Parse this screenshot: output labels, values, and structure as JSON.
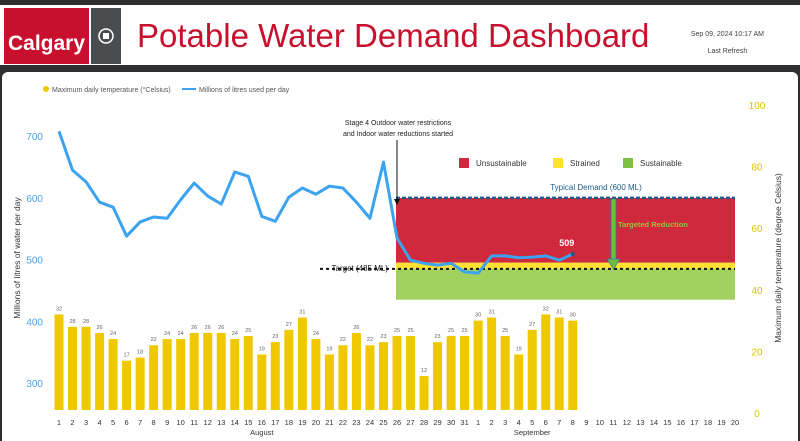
{
  "header": {
    "logo_text": "Calgary",
    "title": "Potable Water Demand Dashboard",
    "timestamp": "Sep 09, 2024 10:17 AM",
    "refresh_label": "Last Refresh"
  },
  "chart_data": {
    "type": "bar+line",
    "legend": [
      "Maximum daily temperature (°Celsius)",
      "Millions of litres used per day"
    ],
    "ylabel_left": "Millions of litres of water per day",
    "ylabel_right": "Maximum daily temperature (degree Celsius)",
    "ylim_left": [
      250,
      720
    ],
    "yticks_left": [
      300,
      400,
      500,
      600,
      700
    ],
    "ylim_right": [
      0,
      100
    ],
    "yticks_right": [
      0,
      20,
      40,
      60,
      80,
      100
    ],
    "x_labels": [
      "1",
      "2",
      "3",
      "4",
      "5",
      "6",
      "7",
      "8",
      "9",
      "10",
      "11",
      "12",
      "13",
      "14",
      "15",
      "16",
      "17",
      "18",
      "19",
      "20",
      "21",
      "22",
      "23",
      "24",
      "25",
      "26",
      "27",
      "28",
      "29",
      "30",
      "31",
      "1",
      "2",
      "3",
      "4",
      "5",
      "6",
      "7",
      "8",
      "9",
      "10",
      "11",
      "12",
      "13",
      "14",
      "15",
      "16",
      "17",
      "18",
      "19",
      "20"
    ],
    "month_labels": [
      "August",
      "September"
    ],
    "temperature": [
      32,
      28,
      28,
      26,
      24,
      17,
      18,
      22,
      24,
      24,
      26,
      26,
      26,
      24,
      25,
      19,
      23,
      27,
      31,
      24,
      19,
      22,
      26,
      22,
      23,
      25,
      25,
      12,
      23,
      25,
      25,
      30,
      31,
      25,
      19,
      27,
      32,
      31,
      30
    ],
    "water_use": [
      708,
      645,
      626,
      593,
      585,
      538,
      561,
      569,
      567,
      597,
      624,
      603,
      590,
      642,
      635,
      570,
      562,
      601,
      616,
      606,
      619,
      616,
      593,
      567,
      658,
      535,
      499,
      494,
      491,
      494,
      480,
      478,
      506,
      506,
      503,
      504,
      506,
      499,
      509
    ],
    "last_value_label": "509",
    "annotation": "Stage 4 Outdoor water restrictions|and Indoor water reductions started",
    "annotation_lines": [
      "Stage 4 Outdoor water restrictions",
      "and Indoor water reductions started"
    ],
    "bands": {
      "start_index": 25,
      "typical": 600,
      "strained_top": 495,
      "target": 485,
      "green_bottom": 435
    },
    "band_legend": [
      "Unsustainable",
      "Strained",
      "Sustainable"
    ],
    "typical_label": "Typical Demand (600 ML)",
    "target_label": "Target (485 ML)",
    "reduction_label": "Targeted Reduction",
    "colors": {
      "bar": "#f0c800",
      "line": "#3ba3f0",
      "red": "#d0283c",
      "yellow": "#ffe033",
      "green": "#a3d160",
      "dash_blue": "#1c5b8c",
      "axis_left": "#4aa3e8",
      "axis_right": "#e0c200"
    }
  }
}
